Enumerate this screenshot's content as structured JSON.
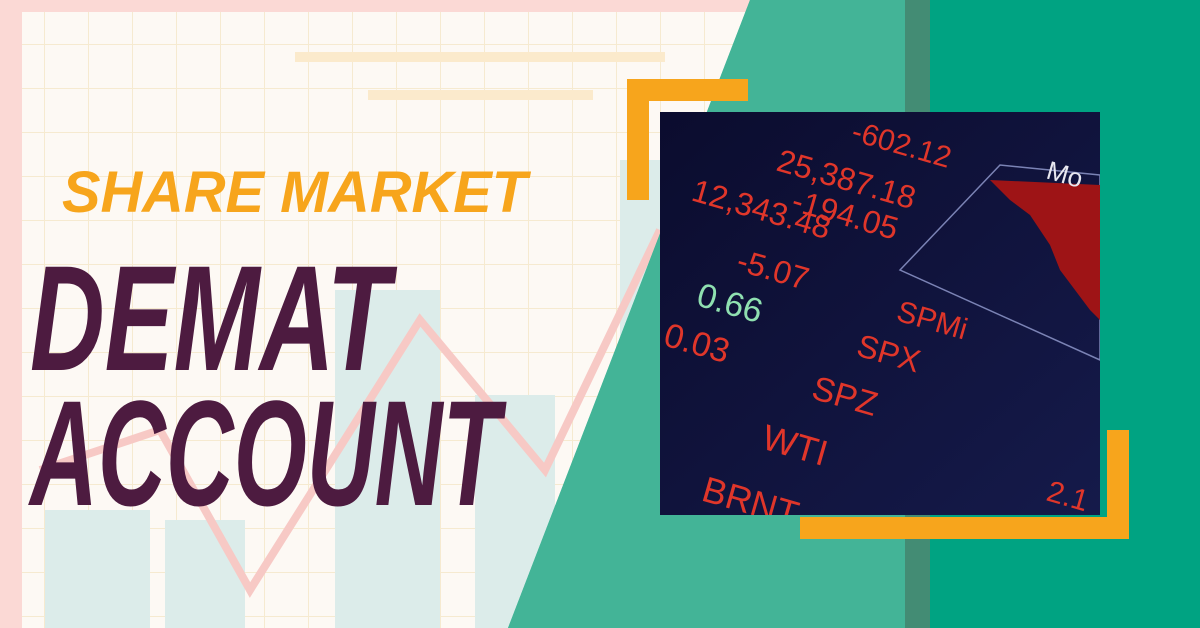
{
  "headline": {
    "kicker": "SHARE MARKET",
    "line1": "DEMAT",
    "line2": "ACCOUNT"
  },
  "photo": {
    "tickers": [
      "-602.12",
      "25,387.18",
      "-194.05",
      "12,343.48",
      "-5.07",
      "0.66",
      "0.03",
      "SPMi",
      "SPX",
      "SPZ",
      "WTI",
      "BRNT",
      "Mo",
      "2.1"
    ]
  }
}
